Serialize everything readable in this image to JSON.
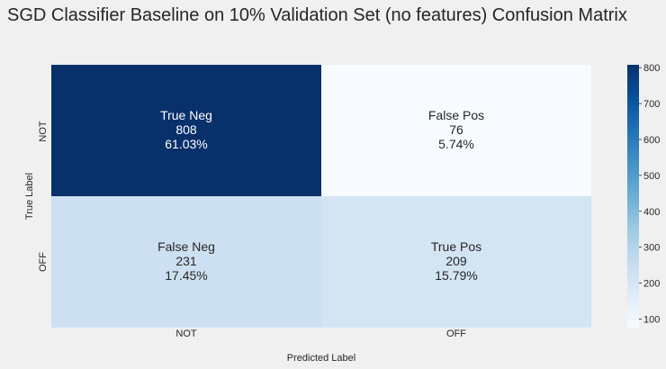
{
  "chart_data": {
    "type": "heatmap",
    "title": "SGD Classifier Baseline on 10% Validation Set (no features) Confusion Matrix",
    "xlabel": "Predicted Label",
    "ylabel": "True Label",
    "x_categories": [
      "NOT",
      "OFF"
    ],
    "y_categories": [
      "NOT",
      "OFF"
    ],
    "cells": [
      [
        {
          "name": "True Neg",
          "count": "808",
          "percent": "61.03%",
          "value": 808,
          "text_color": "#ffffff"
        },
        {
          "name": "False Pos",
          "count": "76",
          "percent": "5.74%",
          "value": 76,
          "text_color": "#262626"
        }
      ],
      [
        {
          "name": "False Neg",
          "count": "231",
          "percent": "17.45%",
          "value": 231,
          "text_color": "#262626"
        },
        {
          "name": "True Pos",
          "count": "209",
          "percent": "15.79%",
          "value": 209,
          "text_color": "#262626"
        }
      ]
    ],
    "colorbar": {
      "colormap": "Blues",
      "vmin": 76,
      "vmax": 808,
      "ticks": [
        "100",
        "200",
        "300",
        "400",
        "500",
        "600",
        "700",
        "800"
      ]
    }
  }
}
